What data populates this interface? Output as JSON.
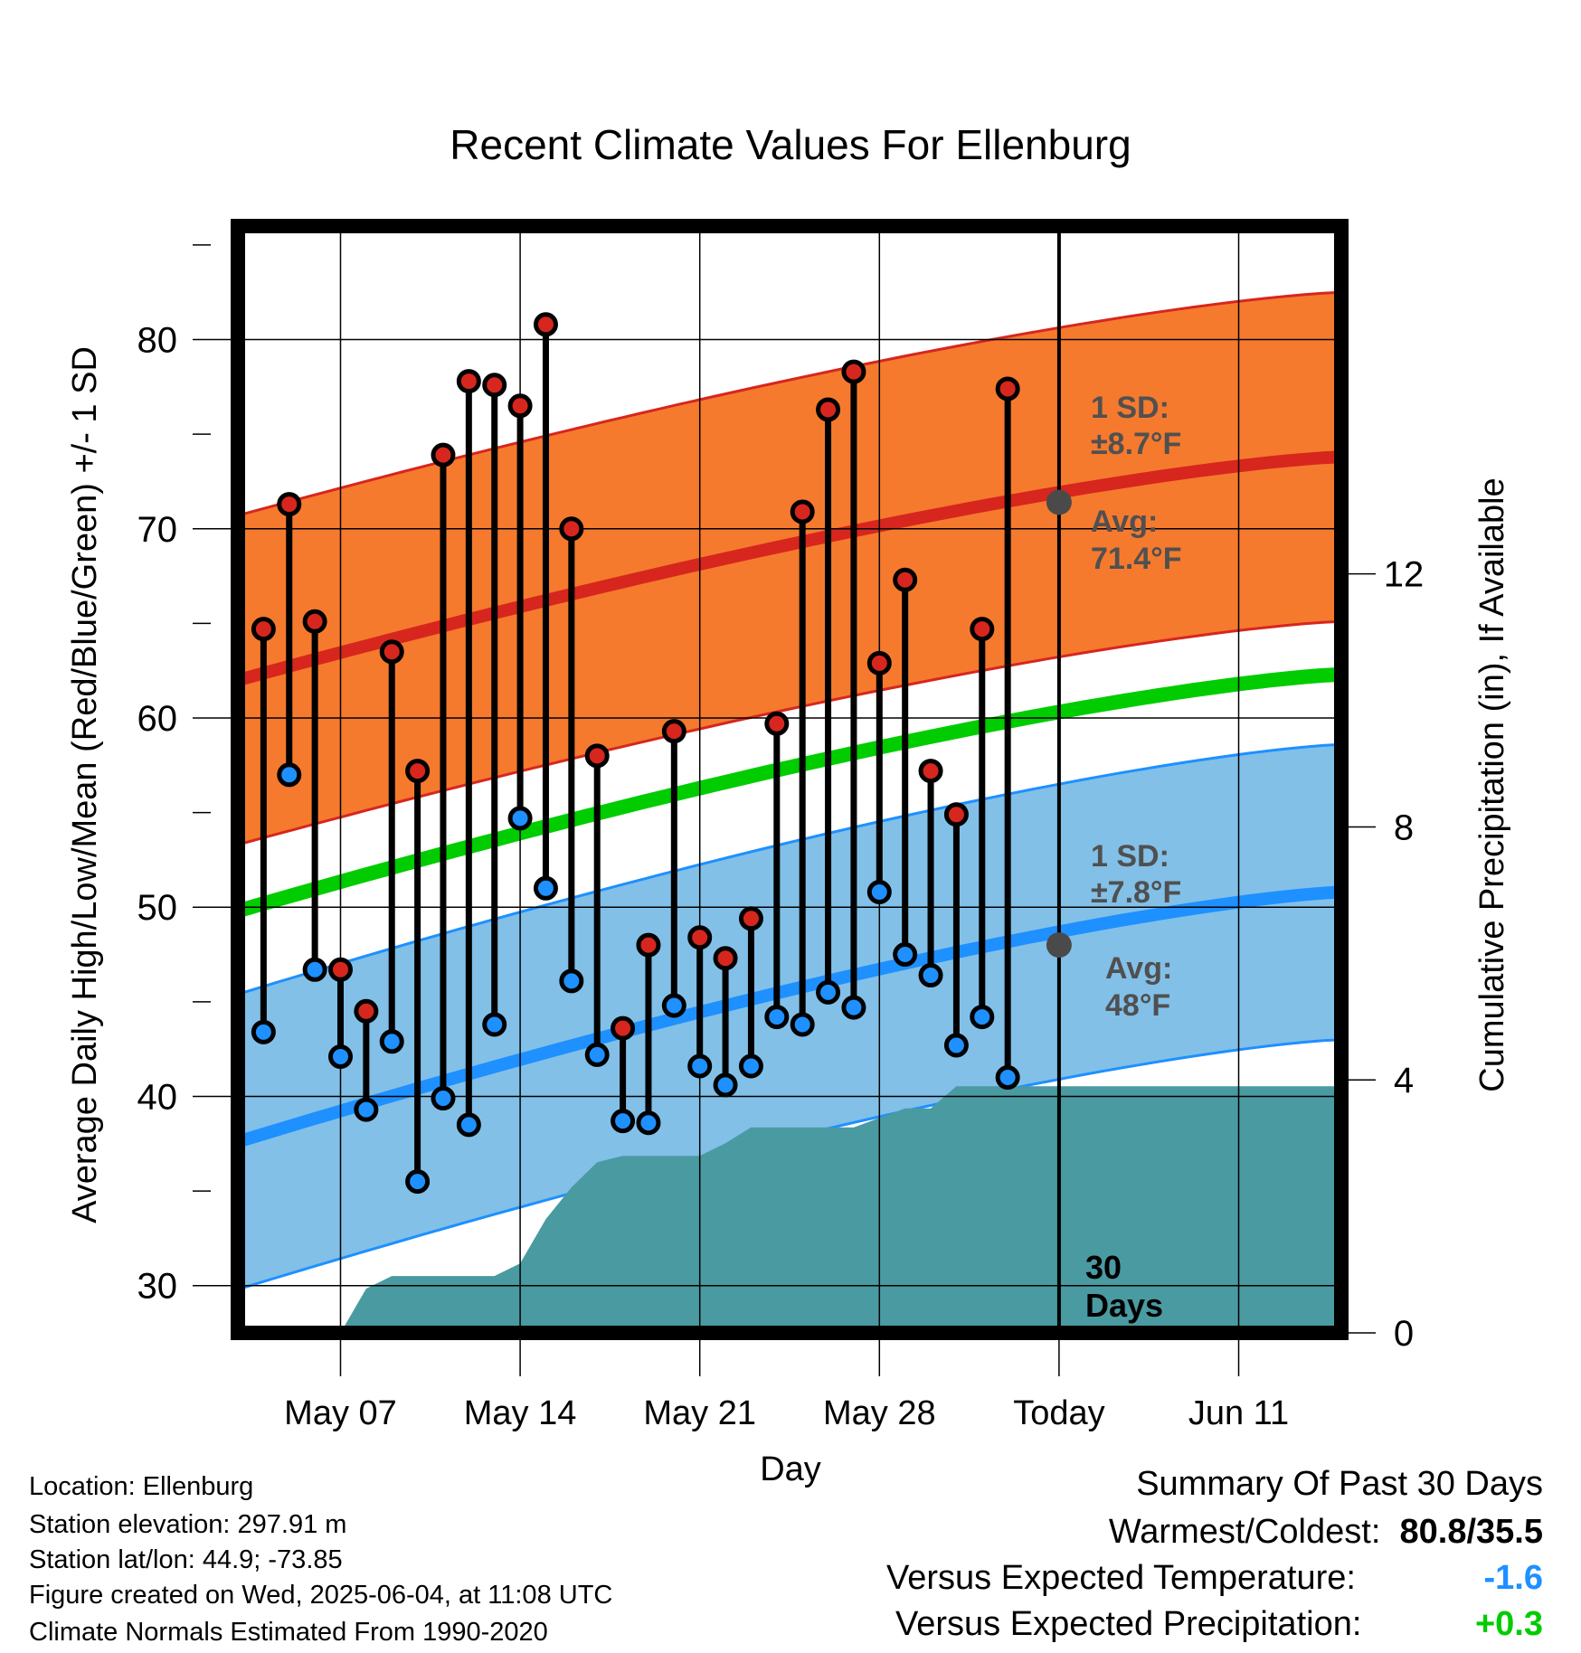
{
  "chart_data": {
    "type": "line",
    "title": "Recent Climate Values For Ellenburg",
    "xlabel": "Day",
    "ylabel": "Average Daily High/Low/Mean (Red/Blue/Green) +/- 1 SD",
    "y2label": "Cumulative Precipitation (in), If Available",
    "ylim": [
      27.5,
      86
    ],
    "y2lim": [
      0,
      17.5
    ],
    "yticks": [
      "30",
      "40",
      "50",
      "60",
      "70",
      "80"
    ],
    "y2ticks": [
      "0",
      "4",
      "8",
      "12"
    ],
    "x_dates": [
      "2025-05-03",
      "2025-06-15"
    ],
    "xticks": [
      {
        "date": "2025-05-07",
        "label": "May 07"
      },
      {
        "date": "2025-05-14",
        "label": "May 14"
      },
      {
        "date": "2025-05-21",
        "label": "May 21"
      },
      {
        "date": "2025-05-28",
        "label": "May 28"
      },
      {
        "date": "2025-06-04",
        "label": "Today"
      },
      {
        "date": "2025-06-11",
        "label": "Jun 11"
      }
    ],
    "grid": true,
    "today": "2025-06-04",
    "today_label": [
      "30",
      "Days"
    ],
    "daily": [
      {
        "date": "2025-05-04",
        "high": 64.7,
        "low": 43.4
      },
      {
        "date": "2025-05-05",
        "high": 71.3,
        "low": 57.0
      },
      {
        "date": "2025-05-06",
        "high": 65.1,
        "low": 46.7
      },
      {
        "date": "2025-05-07",
        "high": 46.7,
        "low": 42.1
      },
      {
        "date": "2025-05-08",
        "high": 44.5,
        "low": 39.3
      },
      {
        "date": "2025-05-09",
        "high": 63.5,
        "low": 42.9
      },
      {
        "date": "2025-05-10",
        "high": 57.2,
        "low": 35.5
      },
      {
        "date": "2025-05-11",
        "high": 73.9,
        "low": 39.9
      },
      {
        "date": "2025-05-12",
        "high": 77.8,
        "low": 38.5
      },
      {
        "date": "2025-05-13",
        "high": 77.6,
        "low": 43.8
      },
      {
        "date": "2025-05-14",
        "high": 76.5,
        "low": 54.7
      },
      {
        "date": "2025-05-15",
        "high": 80.8,
        "low": 51.0
      },
      {
        "date": "2025-05-16",
        "high": 70.0,
        "low": 46.1
      },
      {
        "date": "2025-05-17",
        "high": 58.0,
        "low": 42.2
      },
      {
        "date": "2025-05-18",
        "high": 43.6,
        "low": 38.7
      },
      {
        "date": "2025-05-19",
        "high": 48.0,
        "low": 38.6
      },
      {
        "date": "2025-05-20",
        "high": 59.3,
        "low": 44.8
      },
      {
        "date": "2025-05-21",
        "high": 48.4,
        "low": 41.6
      },
      {
        "date": "2025-05-22",
        "high": 47.3,
        "low": 40.6
      },
      {
        "date": "2025-05-23",
        "high": 49.4,
        "low": 41.6
      },
      {
        "date": "2025-05-24",
        "high": 59.7,
        "low": 44.2
      },
      {
        "date": "2025-05-25",
        "high": 70.9,
        "low": 43.8
      },
      {
        "date": "2025-05-26",
        "high": 76.3,
        "low": 45.5
      },
      {
        "date": "2025-05-27",
        "high": 78.3,
        "low": 44.7
      },
      {
        "date": "2025-05-28",
        "high": 62.9,
        "low": 50.8
      },
      {
        "date": "2025-05-29",
        "high": 67.3,
        "low": 47.5
      },
      {
        "date": "2025-05-30",
        "high": 57.2,
        "low": 46.4
      },
      {
        "date": "2025-05-31",
        "high": 54.9,
        "low": 42.7
      },
      {
        "date": "2025-06-01",
        "high": 64.7,
        "low": 44.2
      },
      {
        "date": "2025-06-02",
        "high": 77.4,
        "low": 41.0
      }
    ],
    "normal_high": {
      "start": 62.0,
      "end": 73.8,
      "sd": 8.7,
      "today_avg": 71.4
    },
    "normal_low": {
      "start": 37.6,
      "end": 50.8,
      "sd": 7.8,
      "today_avg": 48
    },
    "normal_mean": {
      "start": 49.8,
      "end": 62.3
    },
    "precip_cumulative": [
      {
        "date": "2025-05-07",
        "value": 0
      },
      {
        "date": "2025-05-08",
        "value": 0.7
      },
      {
        "date": "2025-05-09",
        "value": 0.9
      },
      {
        "date": "2025-05-13",
        "value": 0.9
      },
      {
        "date": "2025-05-14",
        "value": 1.1
      },
      {
        "date": "2025-05-15",
        "value": 1.8
      },
      {
        "date": "2025-05-16",
        "value": 2.3
      },
      {
        "date": "2025-05-17",
        "value": 2.7
      },
      {
        "date": "2025-05-18",
        "value": 2.8
      },
      {
        "date": "2025-05-21",
        "value": 2.8
      },
      {
        "date": "2025-05-22",
        "value": 3.0
      },
      {
        "date": "2025-05-23",
        "value": 3.25
      },
      {
        "date": "2025-05-27",
        "value": 3.25
      },
      {
        "date": "2025-05-28",
        "value": 3.4
      },
      {
        "date": "2025-05-29",
        "value": 3.55
      },
      {
        "date": "2025-05-30",
        "value": 3.55
      },
      {
        "date": "2025-05-31",
        "value": 3.9
      },
      {
        "date": "2025-06-15",
        "value": 3.9
      }
    ],
    "annotations": {
      "high": {
        "sd_label": "1 SD:",
        "sd_value": "±8.7°F",
        "avg_label": "Avg:",
        "avg_value": "71.4°F"
      },
      "low": {
        "sd_label": "1 SD:",
        "sd_value": "±7.8°F",
        "avg_label": "Avg:",
        "avg_value": "48°F"
      }
    },
    "colors": {
      "high_band": "#f57a2e",
      "high_line": "#d7261e",
      "low_band": "#82c0e8",
      "low_line": "#1e90ff",
      "mean_line": "#00cc00",
      "precip": "#4a9aa2",
      "high_dot": "#d7261e",
      "low_dot": "#1e90ff",
      "annotation": "#505050"
    }
  },
  "footer": {
    "location": "Location: Ellenburg",
    "elevation": "Station elevation: 297.91 m",
    "latlon": "Station lat/lon: 44.9; -73.85",
    "created": "Figure created on Wed, 2025-06-04, at 11:08 UTC",
    "normals": "Climate Normals Estimated From 1990-2020"
  },
  "summary": {
    "title": "Summary Of Past 30 Days",
    "warm_cold_label": "Warmest/Coldest:",
    "warm_cold_value": "80.8/35.5",
    "temp_label": "Versus Expected Temperature:",
    "temp_value": "-1.6",
    "temp_color": "#1e90ff",
    "precip_label": "Versus Expected Precipitation:",
    "precip_value": "+0.3",
    "precip_color": "#00cc00"
  }
}
